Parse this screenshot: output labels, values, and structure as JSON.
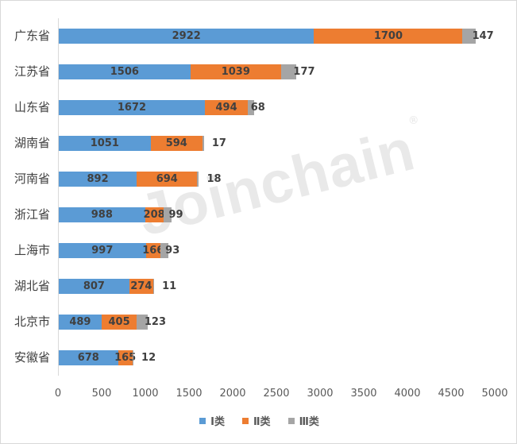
{
  "chart_data": {
    "type": "bar",
    "orientation": "horizontal",
    "stacked": true,
    "title": "",
    "xlabel": "",
    "ylabel": "",
    "xlim": [
      0,
      5000
    ],
    "x_ticks": [
      "0",
      "500",
      "1000",
      "1500",
      "2000",
      "2500",
      "3000",
      "3500",
      "4000",
      "4500",
      "5000"
    ],
    "grid": false,
    "legend_position": "bottom",
    "categories": [
      "广东省",
      "江苏省",
      "山东省",
      "湖南省",
      "河南省",
      "浙江省",
      "上海市",
      "湖北省",
      "北京市",
      "安徽省"
    ],
    "series": [
      {
        "name": "Ⅰ类",
        "color": "#5b9bd5",
        "values": [
          2922,
          1506,
          1672,
          1051,
          892,
          988,
          997,
          807,
          489,
          678
        ]
      },
      {
        "name": "Ⅱ类",
        "color": "#ed7d31",
        "values": [
          1700,
          1039,
          494,
          594,
          694,
          208,
          166,
          274,
          405,
          165
        ]
      },
      {
        "name": "Ⅲ类",
        "color": "#a5a5a5",
        "values": [
          147,
          177,
          68,
          17,
          18,
          99,
          93,
          11,
          123,
          12
        ]
      }
    ]
  },
  "watermark": "Joinchain",
  "watermark_mark": "®"
}
